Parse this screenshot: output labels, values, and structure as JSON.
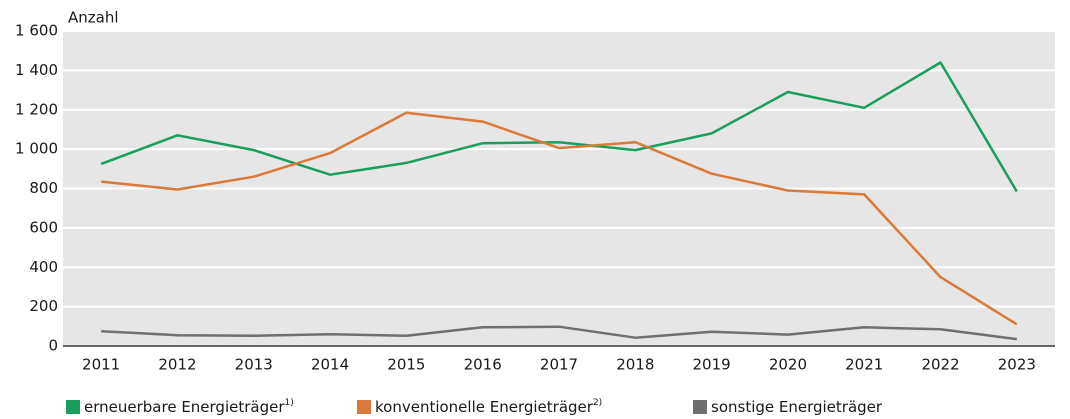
{
  "chart_data": {
    "type": "line",
    "y_axis_label": "Anzahl",
    "categories": [
      "2011",
      "2012",
      "2013",
      "2014",
      "2015",
      "2016",
      "2017",
      "2018",
      "2019",
      "2020",
      "2021",
      "2022",
      "2023"
    ],
    "series": [
      {
        "name": "erneuerbare Energieträger",
        "footnote": "1)",
        "color": "#1a9e5c",
        "values": [
          925,
          1070,
          995,
          870,
          930,
          1030,
          1035,
          995,
          1080,
          1290,
          1210,
          1440,
          785
        ]
      },
      {
        "name": "konventionelle Energieträger",
        "footnote": "2)",
        "color": "#d9793a",
        "values": [
          835,
          795,
          860,
          980,
          1185,
          1140,
          1005,
          1035,
          875,
          790,
          770,
          350,
          110
        ]
      },
      {
        "name": "sonstige Energieträger",
        "color": "#6f6f6f",
        "values": [
          75,
          55,
          52,
          60,
          52,
          95,
          98,
          42,
          72,
          58,
          95,
          85,
          35
        ]
      }
    ],
    "ylim": [
      0,
      1600
    ],
    "yticks": [
      0,
      200,
      400,
      600,
      800,
      {
        "value": 1000,
        "label": "1 000"
      },
      {
        "value": 1200,
        "label": "1 200"
      },
      {
        "value": 1400,
        "label": "1 400"
      },
      {
        "value": 1600,
        "label": "1 600"
      }
    ],
    "grid": true,
    "legend": "bottom"
  }
}
